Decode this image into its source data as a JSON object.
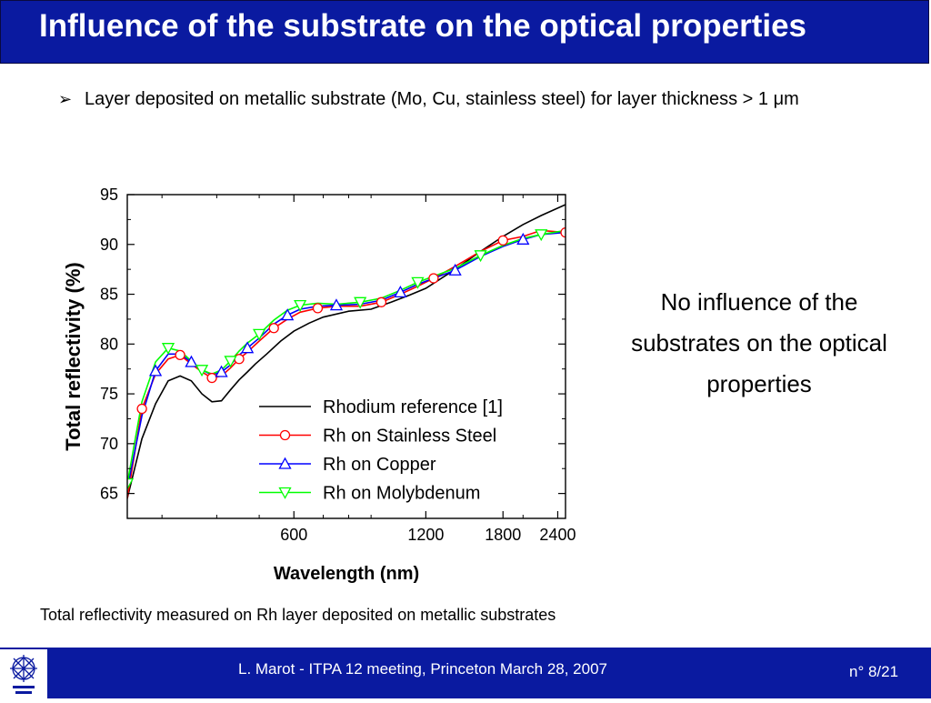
{
  "slide": {
    "title": "Influence of the substrate on the optical properties",
    "bullet_marker": "➢",
    "bullet_text": "Layer deposited on metallic substrate (Mo, Cu, stainless steel) for layer thickness  > 1 μm",
    "side_note": "No influence of the substrates on the optical properties",
    "caption": "Total reflectivity measured on Rh layer deposited on metallic substrates",
    "footer_center": "L. Marot - ITPA 12 meeting, Princeton March 28, 2007",
    "footer_right": "n° 8/21"
  },
  "colors": {
    "title_bar": "#0a1aa0",
    "rhodium_reference": "#000000",
    "stainless_steel": "#ff0000",
    "copper": "#0000ff",
    "molybdenum": "#00ff00"
  },
  "chart_data": {
    "type": "line",
    "xlabel": "Wavelength (nm)",
    "ylabel": "Total reflectivity (%)",
    "x_scale": "log",
    "xlim": [
      250,
      2500
    ],
    "ylim": [
      62.5,
      95
    ],
    "x_ticks": [
      {
        "value": 600,
        "label": "600"
      },
      {
        "value": 1200,
        "label": "1200"
      },
      {
        "value": 1800,
        "label": "1800"
      },
      {
        "value": 2400,
        "label": "2400"
      }
    ],
    "y_ticks": [
      {
        "value": 65,
        "label": "65"
      },
      {
        "value": 70,
        "label": "70"
      },
      {
        "value": 75,
        "label": "75"
      },
      {
        "value": 80,
        "label": "80"
      },
      {
        "value": 85,
        "label": "85"
      },
      {
        "value": 90,
        "label": "90"
      },
      {
        "value": 95,
        "label": "95"
      }
    ],
    "legend_position": "bottom-right",
    "series": [
      {
        "name": "Rhodium reference [1]",
        "color": "#000000",
        "marker": "none",
        "x": [
          250,
          270,
          290,
          310,
          330,
          350,
          370,
          390,
          410,
          430,
          450,
          470,
          490,
          520,
          560,
          600,
          650,
          700,
          800,
          900,
          1000,
          1100,
          1200,
          1400,
          1600,
          1800,
          2000,
          2200,
          2500
        ],
        "y": [
          64.5,
          70.5,
          74.0,
          76.3,
          76.8,
          76.3,
          75.0,
          74.2,
          74.3,
          75.4,
          76.4,
          77.2,
          78.0,
          79.0,
          80.3,
          81.3,
          82.1,
          82.7,
          83.3,
          83.5,
          84.2,
          84.9,
          85.6,
          87.5,
          89.3,
          90.8,
          92.0,
          92.9,
          94.0
        ]
      },
      {
        "name": "Rh on Stainless Steel",
        "color": "#ff0000",
        "marker": "circle",
        "x": [
          250,
          270,
          290,
          310,
          330,
          350,
          370,
          390,
          410,
          430,
          450,
          470,
          500,
          540,
          580,
          620,
          680,
          750,
          850,
          950,
          1050,
          1150,
          1250,
          1400,
          1600,
          1800,
          2000,
          2200,
          2500
        ],
        "y": [
          64.5,
          73.5,
          77.0,
          78.5,
          78.9,
          78.0,
          77.2,
          76.6,
          76.8,
          77.6,
          78.5,
          79.2,
          80.3,
          81.6,
          82.5,
          83.2,
          83.6,
          83.8,
          83.8,
          84.2,
          85.0,
          85.8,
          86.6,
          87.8,
          89.3,
          90.4,
          90.8,
          91.4,
          91.2
        ]
      },
      {
        "name": "Rh on Copper",
        "color": "#0000ff",
        "marker": "triangle-up",
        "x": [
          250,
          270,
          290,
          310,
          330,
          350,
          370,
          390,
          410,
          430,
          450,
          470,
          500,
          540,
          580,
          620,
          680,
          750,
          850,
          950,
          1050,
          1150,
          1250,
          1400,
          1600,
          1800,
          2000,
          2200,
          2500
        ],
        "y": [
          65.5,
          72.8,
          77.3,
          79.0,
          79.0,
          78.2,
          77.4,
          76.9,
          77.2,
          77.9,
          78.9,
          79.6,
          80.6,
          82.0,
          82.9,
          83.5,
          83.8,
          83.9,
          84.0,
          84.4,
          85.2,
          86.0,
          86.6,
          87.4,
          88.8,
          89.8,
          90.5,
          91.0,
          91.2
        ]
      },
      {
        "name": "Rh on Molybdenum",
        "color": "#00ff00",
        "marker": "triangle-down",
        "x": [
          250,
          270,
          290,
          310,
          330,
          350,
          370,
          390,
          410,
          430,
          450,
          470,
          500,
          540,
          580,
          620,
          680,
          750,
          850,
          950,
          1050,
          1150,
          1250,
          1400,
          1600,
          1800,
          2000,
          2200,
          2500
        ],
        "y": [
          66.0,
          74.2,
          78.2,
          79.6,
          79.3,
          78.3,
          77.4,
          77.0,
          77.4,
          78.3,
          79.3,
          80.1,
          81.0,
          82.4,
          83.4,
          83.9,
          84.1,
          84.0,
          84.2,
          84.6,
          85.4,
          86.2,
          86.8,
          87.6,
          88.9,
          89.9,
          90.6,
          91.0,
          91.4
        ]
      }
    ]
  }
}
